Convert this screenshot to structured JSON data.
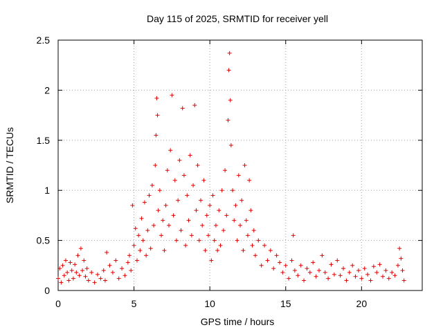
{
  "chart_data": {
    "type": "scatter",
    "title": "Day 115 of 2025, SRMTID for receiver yell",
    "xlabel": "GPS time / hours",
    "ylabel": "SRMTID / TECUs",
    "xlim": [
      0,
      24
    ],
    "ylim": [
      0,
      2.5
    ],
    "x_ticks": [
      0,
      5,
      10,
      15,
      20
    ],
    "x_tick_labels": [
      "0",
      "5",
      "10",
      "15",
      "20"
    ],
    "y_ticks": [
      0,
      0.5,
      1,
      1.5,
      2,
      2.5
    ],
    "y_tick_labels": [
      "0",
      "0.5",
      "1",
      "1.5",
      "2",
      "2.5"
    ],
    "grid": true,
    "marker": "plus",
    "series": [
      {
        "name": "SRMTID",
        "color": "#e00000",
        "x": [
          0.0,
          0.1,
          0.2,
          0.3,
          0.4,
          0.5,
          0.6,
          0.7,
          0.8,
          0.9,
          1.0,
          1.1,
          1.2,
          1.3,
          1.4,
          1.5,
          1.6,
          1.7,
          1.8,
          1.9,
          2.0,
          2.2,
          2.4,
          2.6,
          2.8,
          3.0,
          3.1,
          3.2,
          3.4,
          3.6,
          3.8,
          4.0,
          4.2,
          4.4,
          4.6,
          4.7,
          4.8,
          4.9,
          5.0,
          5.1,
          5.2,
          5.3,
          5.4,
          5.5,
          5.6,
          5.7,
          5.8,
          5.9,
          6.0,
          6.1,
          6.2,
          6.3,
          6.4,
          6.45,
          6.5,
          6.55,
          6.6,
          6.7,
          6.8,
          6.9,
          7.0,
          7.1,
          7.2,
          7.3,
          7.4,
          7.5,
          7.6,
          7.7,
          7.8,
          7.9,
          8.0,
          8.1,
          8.2,
          8.3,
          8.4,
          8.5,
          8.6,
          8.7,
          8.8,
          8.9,
          9.0,
          9.1,
          9.2,
          9.3,
          9.4,
          9.5,
          9.6,
          9.7,
          9.8,
          9.9,
          10.0,
          10.1,
          10.2,
          10.3,
          10.4,
          10.5,
          10.6,
          10.7,
          10.8,
          10.9,
          11.0,
          11.1,
          11.2,
          11.25,
          11.3,
          11.35,
          11.4,
          11.5,
          11.6,
          11.7,
          11.8,
          11.9,
          12.0,
          12.1,
          12.2,
          12.3,
          12.4,
          12.5,
          12.6,
          12.7,
          12.8,
          12.9,
          13.0,
          13.2,
          13.4,
          13.6,
          13.8,
          14.0,
          14.2,
          14.4,
          14.6,
          14.8,
          15.0,
          15.2,
          15.4,
          15.5,
          15.6,
          15.8,
          16.0,
          16.2,
          16.4,
          16.6,
          16.8,
          17.0,
          17.2,
          17.4,
          17.6,
          17.8,
          18.0,
          18.2,
          18.4,
          18.6,
          18.8,
          19.0,
          19.2,
          19.4,
          19.6,
          19.8,
          20.0,
          20.2,
          20.4,
          20.6,
          20.8,
          21.0,
          21.2,
          21.4,
          21.6,
          21.8,
          22.0,
          22.2,
          22.4,
          22.5,
          22.6,
          22.7,
          22.8
        ],
        "values": [
          0.12,
          0.22,
          0.08,
          0.25,
          0.15,
          0.3,
          0.18,
          0.1,
          0.28,
          0.2,
          0.12,
          0.26,
          0.18,
          0.35,
          0.15,
          0.42,
          0.2,
          0.3,
          0.14,
          0.22,
          0.1,
          0.18,
          0.08,
          0.16,
          0.12,
          0.2,
          0.1,
          0.38,
          0.25,
          0.18,
          0.3,
          0.12,
          0.22,
          0.15,
          0.28,
          0.35,
          0.2,
          0.85,
          0.45,
          0.62,
          0.3,
          0.55,
          0.4,
          0.72,
          0.5,
          0.88,
          0.35,
          0.6,
          0.95,
          0.42,
          1.05,
          0.65,
          1.25,
          1.55,
          1.92,
          1.75,
          0.8,
          1.0,
          0.55,
          0.7,
          0.4,
          0.85,
          1.2,
          0.65,
          1.4,
          1.95,
          0.75,
          1.1,
          0.5,
          0.9,
          1.3,
          0.6,
          1.82,
          1.15,
          0.45,
          0.95,
          0.7,
          1.35,
          0.55,
          1.05,
          1.85,
          0.8,
          1.25,
          0.5,
          0.9,
          0.65,
          1.1,
          0.4,
          0.75,
          0.55,
          0.85,
          0.3,
          0.95,
          0.5,
          0.65,
          0.4,
          0.8,
          0.45,
          1.0,
          0.6,
          1.2,
          0.75,
          1.7,
          2.2,
          2.37,
          1.9,
          1.45,
          1.0,
          0.7,
          0.85,
          0.5,
          1.15,
          0.65,
          0.9,
          0.4,
          1.25,
          0.7,
          0.55,
          1.1,
          0.8,
          0.45,
          0.6,
          0.35,
          0.5,
          0.25,
          0.45,
          0.3,
          0.4,
          0.22,
          0.35,
          0.28,
          0.18,
          0.25,
          0.12,
          0.3,
          0.55,
          0.2,
          0.15,
          0.25,
          0.1,
          0.22,
          0.18,
          0.28,
          0.14,
          0.2,
          0.35,
          0.18,
          0.12,
          0.26,
          0.16,
          0.3,
          0.15,
          0.22,
          0.1,
          0.18,
          0.25,
          0.14,
          0.2,
          0.12,
          0.22,
          0.16,
          0.1,
          0.24,
          0.18,
          0.26,
          0.14,
          0.2,
          0.12,
          0.18,
          0.15,
          0.25,
          0.42,
          0.32,
          0.2,
          0.1
        ]
      }
    ]
  }
}
